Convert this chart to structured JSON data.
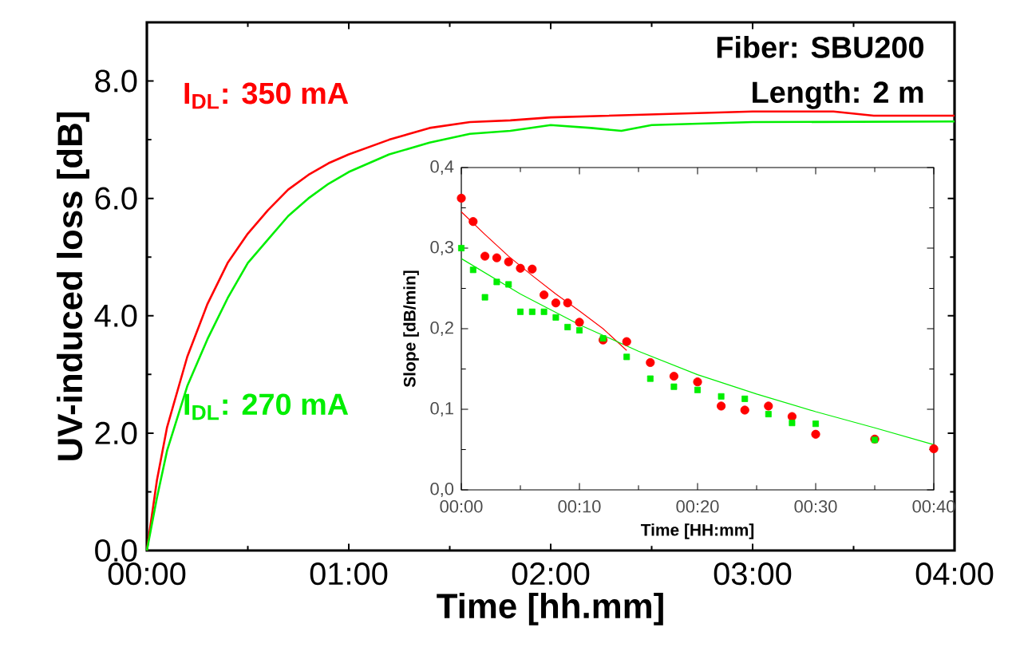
{
  "chart_data": [
    {
      "type": "line",
      "xlabel": "Time [hh.mm]",
      "ylabel": "UV-induced loss [dB]",
      "xlim": [
        0,
        4
      ],
      "ylim": [
        0,
        9
      ],
      "xticks": [
        {
          "value": 0,
          "label": "00:00"
        },
        {
          "value": 1,
          "label": "01:00"
        },
        {
          "value": 2,
          "label": "02:00"
        },
        {
          "value": 3,
          "label": "03:00"
        },
        {
          "value": 4,
          "label": "04:00"
        }
      ],
      "yticks": [
        {
          "value": 0,
          "label": "0.0"
        },
        {
          "value": 2,
          "label": "2.0"
        },
        {
          "value": 4,
          "label": "4.0"
        },
        {
          "value": 6,
          "label": "6.0"
        },
        {
          "value": 8,
          "label": "8.0"
        }
      ],
      "annotations": [
        "Fiber: SBU200",
        "Length: 2 m"
      ],
      "series": [
        {
          "name": "I$_{DL}$: 350 mA",
          "color": "#ff0000",
          "x": [
            0,
            0.05,
            0.1,
            0.2,
            0.3,
            0.4,
            0.5,
            0.6,
            0.7,
            0.8,
            0.9,
            1.0,
            1.2,
            1.4,
            1.6,
            1.8,
            2.0,
            2.5,
            3.0,
            3.4,
            3.6,
            4.0
          ],
          "values": [
            0,
            1.2,
            2.1,
            3.3,
            4.2,
            4.9,
            5.4,
            5.8,
            6.15,
            6.4,
            6.6,
            6.75,
            7.0,
            7.2,
            7.3,
            7.33,
            7.38,
            7.43,
            7.48,
            7.48,
            7.41,
            7.41
          ]
        },
        {
          "name": "I$_{DL}$: 270 mA",
          "color": "#00ee00",
          "x": [
            0,
            0.05,
            0.1,
            0.2,
            0.3,
            0.4,
            0.5,
            0.6,
            0.7,
            0.8,
            0.9,
            1.0,
            1.2,
            1.4,
            1.6,
            1.8,
            2.0,
            2.2,
            2.35,
            2.5,
            3.0,
            4.0
          ],
          "values": [
            0,
            0.9,
            1.7,
            2.8,
            3.6,
            4.3,
            4.9,
            5.3,
            5.7,
            6.0,
            6.25,
            6.45,
            6.75,
            6.95,
            7.1,
            7.15,
            7.25,
            7.2,
            7.15,
            7.25,
            7.3,
            7.31
          ]
        }
      ]
    },
    {
      "type": "scatter",
      "xlabel": "Time [HH:mm]",
      "ylabel": "Slope [dB/min]",
      "xlim": [
        0,
        40
      ],
      "ylim": [
        0,
        0.4
      ],
      "xticks": [
        {
          "value": 0,
          "label": "00:00"
        },
        {
          "value": 10,
          "label": "00:10"
        },
        {
          "value": 20,
          "label": "00:20"
        },
        {
          "value": 30,
          "label": "00:30"
        },
        {
          "value": 40,
          "label": "00:40"
        }
      ],
      "yticks": [
        {
          "value": 0,
          "label": "0,0"
        },
        {
          "value": 0.1,
          "label": "0,1"
        },
        {
          "value": 0.2,
          "label": "0,2"
        },
        {
          "value": 0.3,
          "label": "0,3"
        },
        {
          "value": 0.4,
          "label": "0,4"
        }
      ],
      "series": [
        {
          "color": "#ff0000",
          "marker": "circle",
          "x": [
            0,
            1,
            2,
            3,
            4,
            5,
            6,
            7,
            8,
            9,
            10,
            12,
            14,
            16,
            18,
            20,
            22,
            24,
            26,
            28,
            30,
            35,
            40
          ],
          "values": [
            0.362,
            0.333,
            0.29,
            0.288,
            0.283,
            0.275,
            0.274,
            0.242,
            0.232,
            0.232,
            0.208,
            0.186,
            0.184,
            0.158,
            0.141,
            0.134,
            0.104,
            0.099,
            0.104,
            0.091,
            0.069,
            0.063,
            0.051
          ]
        },
        {
          "color": "#00ee00",
          "marker": "square",
          "x": [
            0,
            1,
            2,
            3,
            4,
            5,
            6,
            7,
            8,
            9,
            10,
            12,
            14,
            16,
            18,
            20,
            22,
            24,
            26,
            28,
            30,
            35
          ],
          "values": [
            0.3,
            0.273,
            0.239,
            0.258,
            0.255,
            0.221,
            0.221,
            0.221,
            0.214,
            0.202,
            0.198,
            0.188,
            0.165,
            0.138,
            0.128,
            0.124,
            0.116,
            0.113,
            0.094,
            0.083,
            0.082,
            0.062
          ]
        },
        {
          "type": "line",
          "color": "#ff0000",
          "x": [
            0,
            2,
            4,
            6,
            8,
            10,
            12,
            14
          ],
          "values": [
            0.345,
            0.317,
            0.29,
            0.266,
            0.243,
            0.222,
            0.2,
            0.173
          ]
        },
        {
          "type": "line",
          "color": "#00ee00",
          "x": [
            0,
            5,
            10,
            15,
            20,
            25,
            30,
            35,
            40
          ],
          "values": [
            0.287,
            0.243,
            0.205,
            0.172,
            0.143,
            0.119,
            0.097,
            0.077,
            0.056
          ]
        }
      ]
    }
  ]
}
